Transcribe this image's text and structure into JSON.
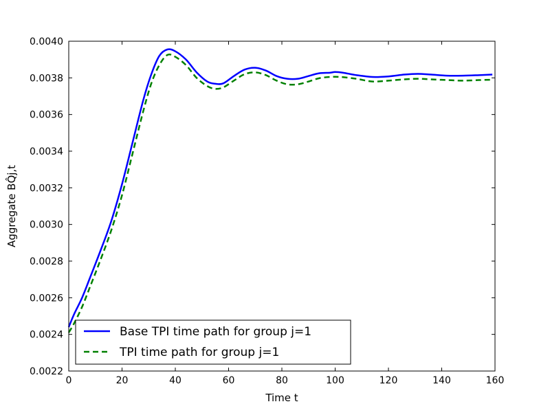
{
  "chart_data": {
    "type": "line",
    "xlabel": "Time t",
    "ylabel": "Aggregate BQ̂j,t",
    "xlim": [
      0,
      160
    ],
    "ylim": [
      0.0022,
      0.004
    ],
    "xticks": [
      "0",
      "20",
      "40",
      "60",
      "80",
      "100",
      "120",
      "140",
      "160"
    ],
    "yticks": [
      "0.0022",
      "0.0024",
      "0.0026",
      "0.0028",
      "0.0030",
      "0.0032",
      "0.0034",
      "0.0036",
      "0.0038",
      "0.0040"
    ],
    "grid": false,
    "legend_position": "lower-left",
    "series": [
      {
        "name": "Base TPI time path for group j=1",
        "color": "#0000ff",
        "style": "solid",
        "x": [
          0,
          2,
          5,
          8,
          12,
          16,
          20,
          24,
          28,
          31,
          34,
          37,
          40,
          44,
          48,
          52,
          55,
          58,
          62,
          66,
          70,
          74,
          78,
          82,
          86,
          90,
          94,
          98,
          100,
          103,
          108,
          114,
          120,
          126,
          131,
          136,
          142,
          148,
          154,
          159
        ],
        "values": [
          0.00244,
          0.00251,
          0.0026,
          0.00271,
          0.00286,
          0.00302,
          0.00322,
          0.00345,
          0.00368,
          0.00382,
          0.00392,
          0.003955,
          0.003945,
          0.0039,
          0.00383,
          0.00378,
          0.003768,
          0.00377,
          0.00381,
          0.003845,
          0.003855,
          0.00384,
          0.00381,
          0.003795,
          0.003795,
          0.00381,
          0.003825,
          0.003828,
          0.003832,
          0.003828,
          0.003815,
          0.003805,
          0.003808,
          0.003818,
          0.003822,
          0.003818,
          0.003812,
          0.003812,
          0.003815,
          0.003818
        ]
      },
      {
        "name": "TPI time path for group j=1",
        "color": "#008000",
        "style": "dashed",
        "x": [
          0,
          2,
          5,
          8,
          12,
          16,
          20,
          24,
          28,
          31,
          34,
          37,
          40,
          44,
          48,
          52,
          55,
          58,
          62,
          66,
          70,
          74,
          78,
          82,
          86,
          90,
          94,
          98,
          102,
          108,
          114,
          120,
          126,
          131,
          136,
          142,
          148,
          154,
          159
        ],
        "values": [
          0.00241,
          0.00246,
          0.00255,
          0.00266,
          0.00281,
          0.00297,
          0.00316,
          0.00339,
          0.00362,
          0.00377,
          0.00387,
          0.003925,
          0.003915,
          0.00387,
          0.0038,
          0.003755,
          0.00374,
          0.003748,
          0.003785,
          0.00382,
          0.00383,
          0.003815,
          0.003785,
          0.003765,
          0.003765,
          0.00378,
          0.003798,
          0.003805,
          0.003805,
          0.003795,
          0.00378,
          0.003785,
          0.003792,
          0.003795,
          0.003792,
          0.003788,
          0.003785,
          0.003788,
          0.00379
        ]
      }
    ]
  }
}
